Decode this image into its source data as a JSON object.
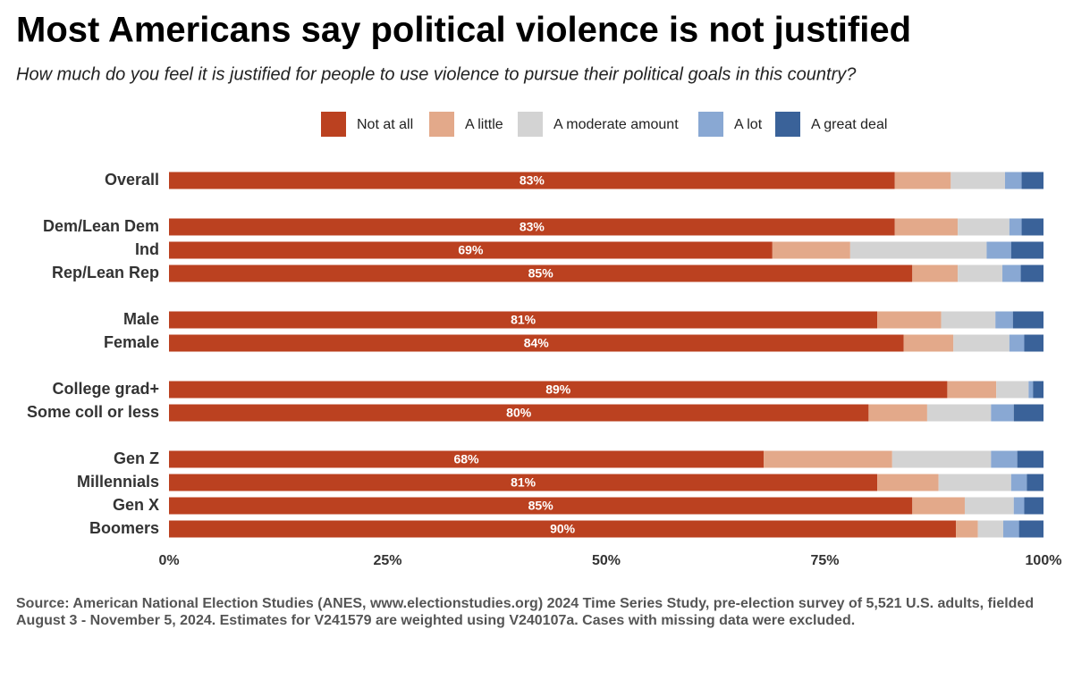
{
  "chart_data": {
    "type": "stacked-bar-horizontal",
    "title": "Most Americans say political violence is not justified",
    "subtitle": "How much do you feel it is justified for people to use violence to pursue their political goals in this country?",
    "categories": [
      "Overall",
      null,
      "Dem/Lean Dem",
      "Ind",
      "Rep/Lean Rep",
      null,
      "Male",
      "Female",
      null,
      "College grad+",
      "Some coll or less",
      null,
      "Gen Z",
      "Millennials",
      "Gen X",
      "Boomers"
    ],
    "series": [
      {
        "name": "Not at all",
        "color": "#bb4120",
        "values": [
          83,
          null,
          83,
          69,
          85,
          null,
          81,
          84,
          null,
          89,
          80,
          null,
          68,
          81,
          85,
          90
        ],
        "value_labels": [
          "83%",
          null,
          "83%",
          "69%",
          "85%",
          null,
          "81%",
          "84%",
          null,
          "89%",
          "80%",
          null,
          "68%",
          "81%",
          "85%",
          "90%"
        ]
      },
      {
        "name": "A little",
        "color": "#e3a98a",
        "values": [
          6.4,
          null,
          7.2,
          8.9,
          5.2,
          null,
          7.3,
          5.7,
          null,
          5.6,
          6.7,
          null,
          14.7,
          7.0,
          6.0,
          2.5
        ]
      },
      {
        "name": "A moderate amount",
        "color": "#d3d3d3",
        "values": [
          6.2,
          null,
          5.9,
          15.6,
          5.1,
          null,
          6.2,
          6.4,
          null,
          3.7,
          7.3,
          null,
          11.3,
          8.3,
          5.6,
          2.9
        ]
      },
      {
        "name": "A lot",
        "color": "#89a8d3",
        "values": [
          1.9,
          null,
          1.4,
          2.8,
          2.1,
          null,
          2.0,
          1.7,
          null,
          0.5,
          2.6,
          null,
          3.0,
          1.8,
          1.2,
          1.8
        ]
      },
      {
        "name": "A great deal",
        "color": "#3a6299",
        "values": [
          2.5,
          null,
          2.5,
          3.7,
          2.6,
          null,
          3.5,
          2.2,
          null,
          1.2,
          3.4,
          null,
          3.0,
          1.9,
          2.2,
          2.8
        ]
      }
    ],
    "xlim": [
      0,
      100
    ],
    "xticks": [
      {
        "value": 0,
        "label": "0%"
      },
      {
        "value": 25,
        "label": "25%"
      },
      {
        "value": 50,
        "label": "50%"
      },
      {
        "value": 75,
        "label": "75%"
      },
      {
        "value": 100,
        "label": "100%"
      }
    ],
    "legend": "top",
    "source": "Source: American National Election Studies (ANES, www.electionstudies.org) 2024 Time Series Study, pre-election survey of 5,521 U.S. adults, fielded August 3 - November 5, 2024. Estimates for V241579 are weighted using V240107a. Cases with missing data were excluded."
  }
}
